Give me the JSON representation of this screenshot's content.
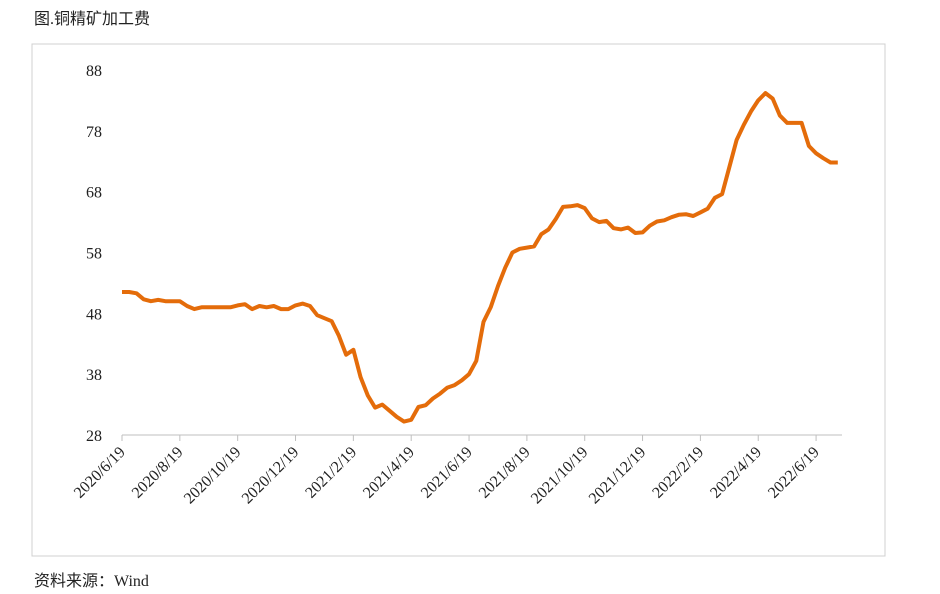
{
  "chart_data": {
    "type": "line",
    "title": "图.铜精矿加工费",
    "source": "资料来源：Wind",
    "categories": [
      "2020/6/19",
      null,
      null,
      null,
      null,
      null,
      null,
      null,
      "2020/8/19",
      null,
      null,
      null,
      null,
      null,
      null,
      null,
      "2020/10/19",
      null,
      null,
      null,
      null,
      null,
      null,
      null,
      "2020/12/19",
      null,
      null,
      null,
      null,
      null,
      null,
      null,
      "2021/2/19",
      null,
      null,
      null,
      null,
      null,
      null,
      null,
      "2021/4/19",
      null,
      null,
      null,
      null,
      null,
      null,
      null,
      "2021/6/19",
      null,
      null,
      null,
      null,
      null,
      null,
      null,
      "2021/8/19",
      null,
      null,
      null,
      null,
      null,
      null,
      null,
      "2021/10/19",
      null,
      null,
      null,
      null,
      null,
      null,
      null,
      "2021/12/19",
      null,
      null,
      null,
      null,
      null,
      null,
      null,
      "2022/2/19",
      null,
      null,
      null,
      null,
      null,
      null,
      null,
      "2022/4/19",
      null,
      null,
      null,
      null,
      null,
      null,
      null,
      "2022/6/19",
      null,
      null,
      null
    ],
    "values": [
      51.5,
      51.5,
      51.3,
      50.3,
      50,
      50.2,
      50,
      50,
      50,
      49.2,
      48.7,
      49,
      49,
      49,
      49,
      49,
      49.3,
      49.5,
      48.7,
      49.2,
      49,
      49.2,
      48.7,
      48.7,
      49.3,
      49.6,
      49.2,
      47.7,
      47.2,
      46.7,
      44.3,
      41.2,
      42,
      37.5,
      34.5,
      32.5,
      33,
      32,
      31,
      30.2,
      30.5,
      32.6,
      32.9,
      34,
      34.8,
      35.8,
      36.2,
      37,
      38,
      40.2,
      46.6,
      49,
      52.5,
      55.5,
      58,
      58.6,
      58.8,
      59,
      61,
      61.8,
      63.5,
      65.5,
      65.6,
      65.8,
      65.3,
      63.6,
      63,
      63.2,
      62,
      61.8,
      62.1,
      61.2,
      61.3,
      62.4,
      63.1,
      63.3,
      63.8,
      64.2,
      64.3,
      64,
      64.6,
      65.2,
      67,
      67.6,
      72,
      76.5,
      79,
      81.2,
      83,
      84.2,
      83.3,
      80.5,
      79.3,
      79.3,
      79.3,
      75.5,
      74.3,
      73.5,
      72.8,
      72.8
    ],
    "color": "#e46c0a",
    "ylim": [
      28,
      88
    ],
    "yticks": [
      28,
      38,
      48,
      58,
      68,
      78,
      88
    ]
  }
}
